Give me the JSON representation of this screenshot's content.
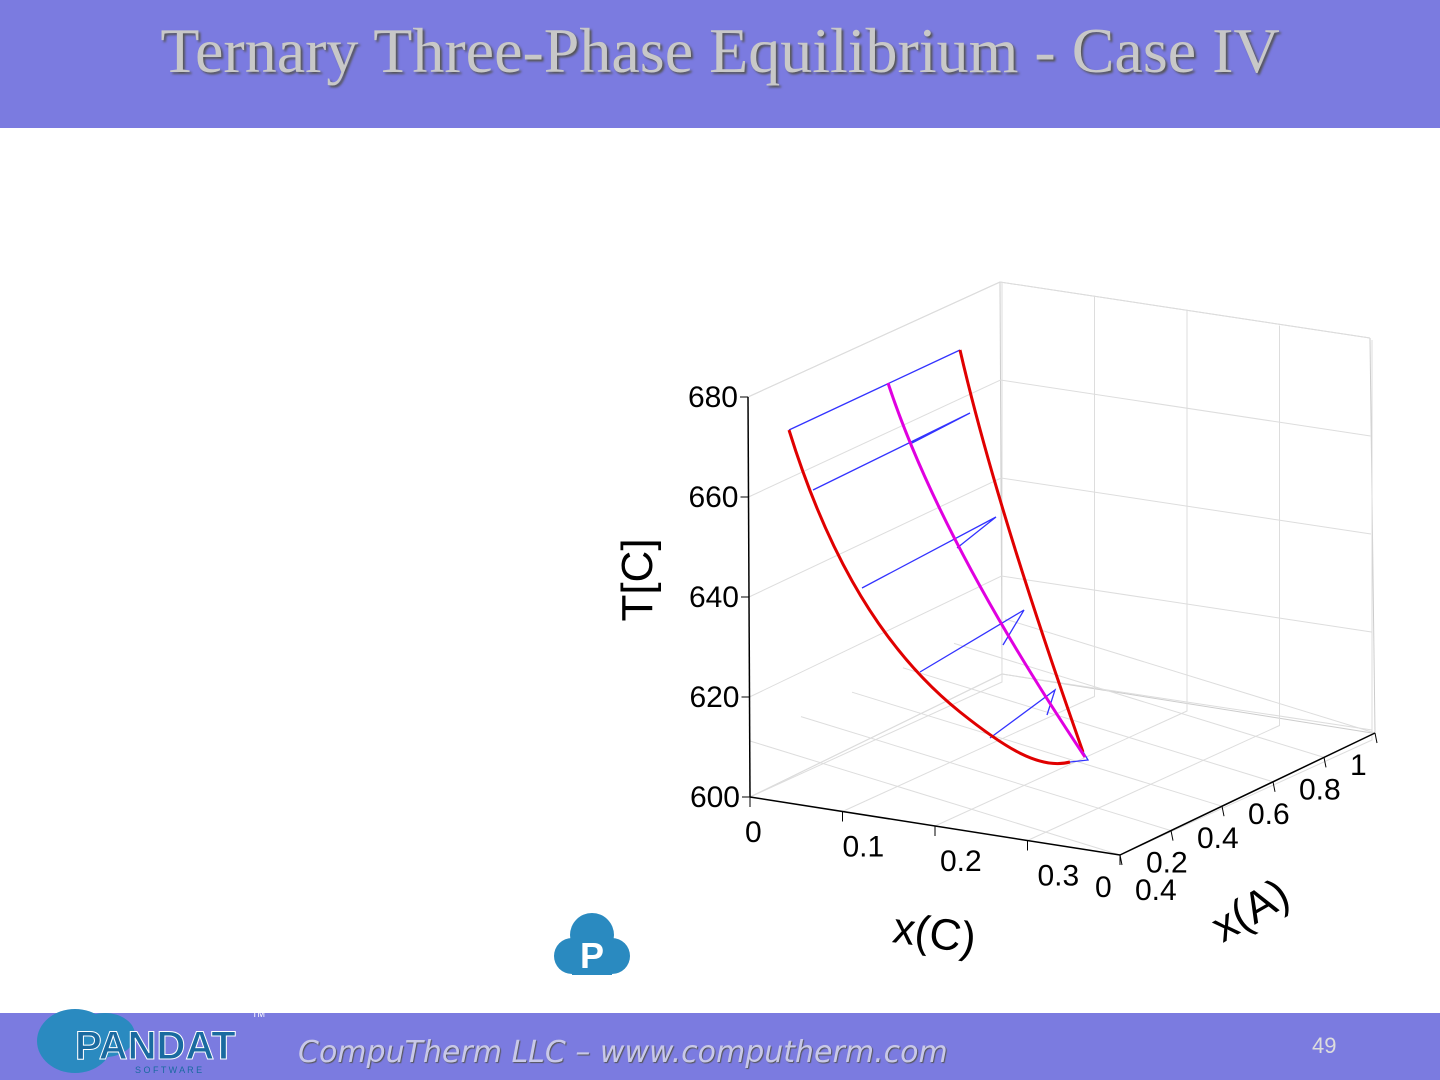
{
  "slide": {
    "title": "Ternary Three-Phase Equilibrium - Case IV",
    "footer": "CompuTherm LLC – www.computherm.com",
    "page": "49",
    "logo": "PANDAT",
    "logo_sub": "S O F T W A R E",
    "logo_tm": "TM"
  },
  "chart_data": {
    "type": "3d",
    "zlabel": "T[C]",
    "xlabel": "x(C)",
    "ylabel": "x(A)",
    "zlim": [
      600,
      680
    ],
    "zticks": [
      600,
      620,
      640,
      660,
      680
    ],
    "xlim": [
      0,
      0.4
    ],
    "xticks": [
      0,
      0.1,
      0.2,
      0.3,
      0.4
    ],
    "ylim": [
      0,
      1
    ],
    "yticks": [
      0,
      0.2,
      0.4,
      0.6,
      0.8,
      1
    ],
    "grid": true
  }
}
